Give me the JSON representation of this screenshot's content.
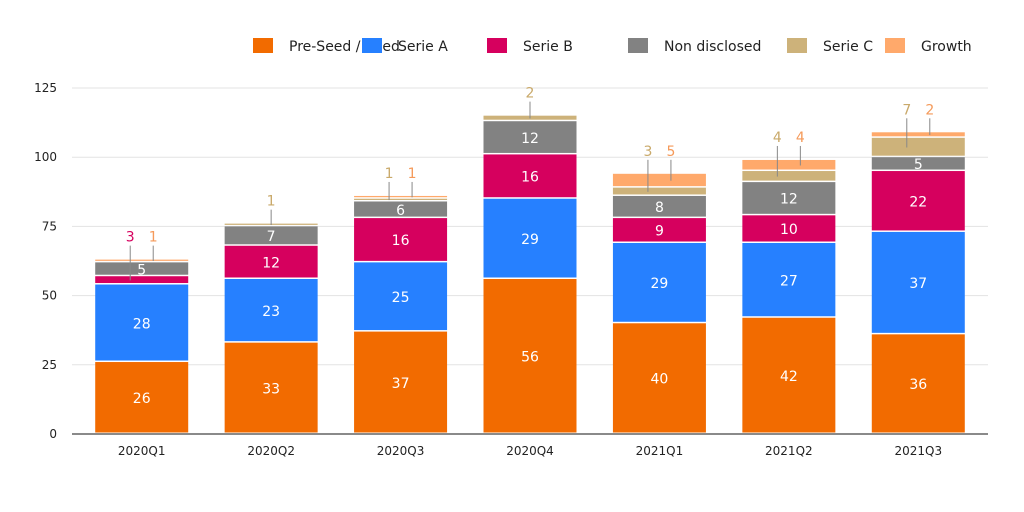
{
  "chart_data": {
    "type": "bar",
    "stacked": true,
    "title": "",
    "xlabel": "",
    "ylabel": "",
    "ylim": [
      0,
      125
    ],
    "yticks": [
      0,
      25,
      50,
      75,
      100,
      125
    ],
    "grid": true,
    "legend_position": "top-right",
    "categories": [
      "2020Q1",
      "2020Q2",
      "2020Q3",
      "2020Q4",
      "2021Q1",
      "2021Q2",
      "2021Q3"
    ],
    "series": [
      {
        "name": "Pre-Seed / Seed",
        "color": "#f26b00",
        "values": [
          26,
          33,
          37,
          56,
          40,
          42,
          36
        ]
      },
      {
        "name": "Serie A",
        "color": "#2680ff",
        "values": [
          28,
          23,
          25,
          29,
          29,
          27,
          37
        ]
      },
      {
        "name": "Serie B",
        "color": "#d6005e",
        "values": [
          3,
          12,
          16,
          16,
          9,
          10,
          22
        ]
      },
      {
        "name": "Non disclosed",
        "color": "#828282",
        "values": [
          5,
          7,
          6,
          12,
          8,
          12,
          5
        ]
      },
      {
        "name": "Serie C",
        "color": "#cdb27a",
        "values": [
          0,
          1,
          1,
          2,
          3,
          4,
          7
        ]
      },
      {
        "name": "Growth",
        "color": "#ffa96b",
        "values": [
          1,
          0,
          1,
          0,
          5,
          4,
          2
        ]
      }
    ]
  }
}
